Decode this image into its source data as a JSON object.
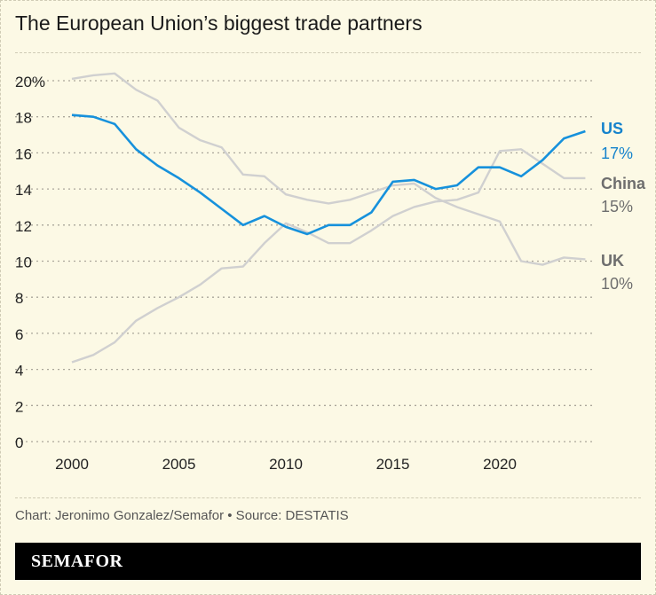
{
  "title": "The European Union’s biggest trade partners",
  "credit": "Chart: Jeronimo Gonzalez/Semafor • Source: DESTATIS",
  "logo": "SEMAFOR",
  "chart_data": {
    "type": "line",
    "title": "The European Union’s biggest trade partners",
    "x": [
      2000,
      2001,
      2002,
      2003,
      2004,
      2005,
      2006,
      2007,
      2008,
      2009,
      2010,
      2011,
      2012,
      2013,
      2014,
      2015,
      2016,
      2017,
      2018,
      2019,
      2020,
      2021,
      2022,
      2023,
      2024
    ],
    "xticks": [
      "2000",
      "2005",
      "2010",
      "2015",
      "2020"
    ],
    "yticks": [
      "0",
      "2",
      "4",
      "6",
      "8",
      "10",
      "12",
      "14",
      "16",
      "18",
      "20%"
    ],
    "ylim": [
      0,
      20
    ],
    "grid": true,
    "series": [
      {
        "name": "UK",
        "end_label": "10%",
        "color": "#d0d0d0",
        "label_color": "#6e6e6e",
        "values": [
          20.1,
          20.3,
          20.4,
          19.5,
          18.9,
          17.4,
          16.7,
          16.3,
          14.8,
          14.7,
          13.7,
          13.4,
          13.2,
          13.4,
          13.8,
          14.2,
          14.3,
          13.5,
          13.0,
          12.6,
          12.2,
          10.0,
          9.8,
          10.2,
          10.1
        ]
      },
      {
        "name": "China",
        "end_label": "15%",
        "color": "#d0d0d0",
        "label_color": "#6e6e6e",
        "values": [
          4.4,
          4.8,
          5.5,
          6.7,
          7.4,
          8.0,
          8.7,
          9.6,
          9.7,
          11.0,
          12.1,
          11.6,
          11.0,
          11.0,
          11.7,
          12.5,
          13.0,
          13.3,
          13.4,
          13.8,
          16.1,
          16.2,
          15.4,
          14.6,
          14.6
        ]
      },
      {
        "name": "US",
        "end_label": "17%",
        "color": "#1691dc",
        "label_color": "#1583cc",
        "values": [
          18.1,
          18.0,
          17.6,
          16.2,
          15.3,
          14.6,
          13.8,
          12.9,
          12.0,
          12.5,
          11.9,
          11.5,
          12.0,
          12.0,
          12.7,
          14.4,
          14.5,
          14.0,
          14.2,
          15.2,
          15.2,
          14.7,
          15.6,
          16.8,
          17.2
        ]
      }
    ]
  }
}
